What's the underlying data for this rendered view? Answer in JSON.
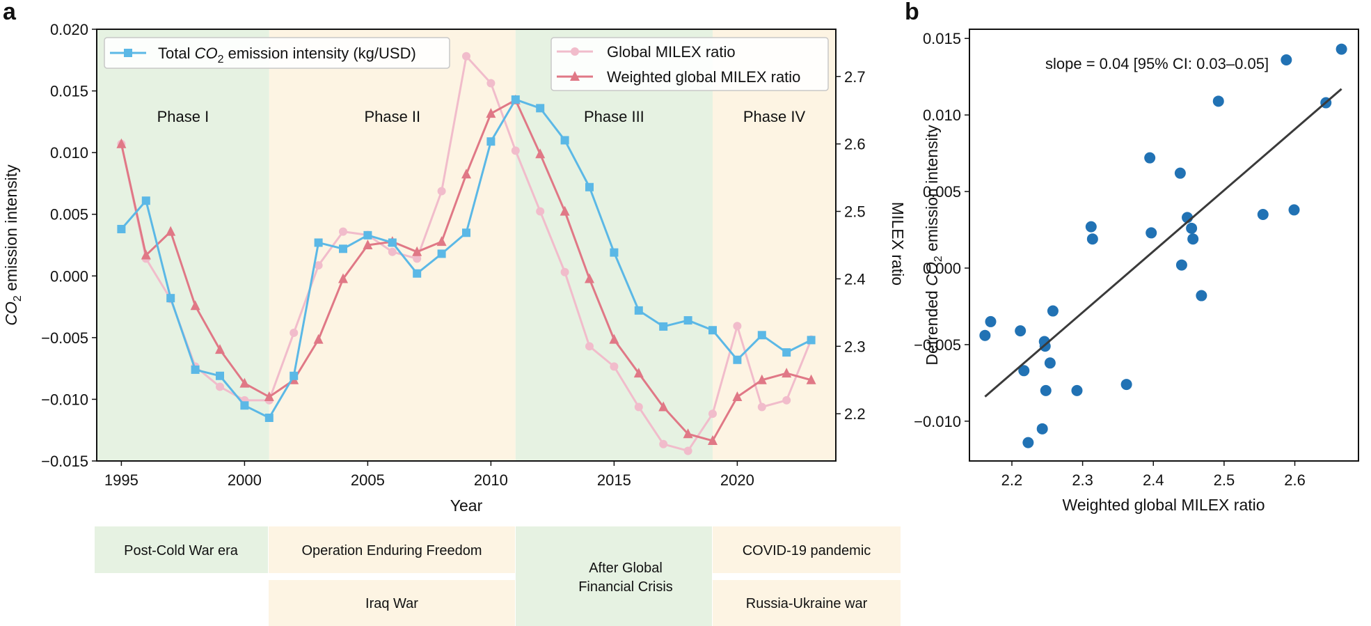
{
  "panel_a": {
    "label": "a",
    "phases": [
      {
        "label": "Phase I",
        "start": 1994.0,
        "end": 2001.0,
        "color": "#e6f2e2"
      },
      {
        "label": "Phase II",
        "start": 2001.0,
        "end": 2011.0,
        "color": "#fdf4e3"
      },
      {
        "label": "Phase III",
        "start": 2011.0,
        "end": 2019.0,
        "color": "#e6f2e2"
      },
      {
        "label": "Phase IV",
        "start": 2019.0,
        "end": 2024.0,
        "color": "#fdf4e3"
      }
    ],
    "legend_left": {
      "prefix": "Total ",
      "co": "CO",
      "sub": "2",
      "suffix": " emission intensity (kg/USD)"
    },
    "legend_right": [
      "Global MILEX ratio",
      "Weighted global MILEX ratio"
    ],
    "events": [
      {
        "label": "Post-Cold War era"
      },
      {
        "label": "Operation Enduring Freedom"
      },
      {
        "label": "Iraq War"
      },
      {
        "label": "After Global"
      },
      {
        "label": "Financial Crisis"
      },
      {
        "label": "COVID-19 pandemic"
      },
      {
        "label": "Russia-Ukraine war"
      }
    ]
  },
  "panel_b": {
    "label": "b",
    "annotation": "slope = 0.04 [95% CI: 0.03–0.05]"
  },
  "chart_data": [
    {
      "type": "line",
      "title": "",
      "xlabel": "Year",
      "ylabel_left": {
        "prefix": "",
        "co": "CO",
        "sub": "2",
        "suffix": " emission intensity"
      },
      "ylabel_right": "MILEX ratio",
      "xlim": [
        1994.0,
        2024.0
      ],
      "ylim_left": [
        -0.015,
        0.02
      ],
      "ylim_right": [
        2.13,
        2.77
      ],
      "x_ticks": [
        1995,
        2000,
        2005,
        2010,
        2015,
        2020
      ],
      "y_ticks_left": [
        "0.020",
        "0.015",
        "0.010",
        "0.005",
        "0.000",
        "−0.005",
        "−0.010",
        "−0.015"
      ],
      "y_ticks_left_values": [
        0.02,
        0.015,
        0.01,
        0.005,
        0.0,
        -0.005,
        -0.01,
        -0.015
      ],
      "y_ticks_right": [
        "2.7",
        "2.6",
        "2.5",
        "2.4",
        "2.3",
        "2.2"
      ],
      "y_ticks_right_values": [
        2.7,
        2.6,
        2.5,
        2.4,
        2.3,
        2.2
      ],
      "x": [
        1995,
        1996,
        1997,
        1998,
        1999,
        2000,
        2001,
        2002,
        2003,
        2004,
        2005,
        2006,
        2007,
        2008,
        2009,
        2010,
        2011,
        2012,
        2013,
        2014,
        2015,
        2016,
        2017,
        2018,
        2019,
        2020,
        2021,
        2022,
        2023
      ],
      "series": [
        {
          "name": "Total CO2 emission intensity (kg/USD)",
          "axis": "left",
          "marker": "square",
          "color": "#5bb8e6",
          "values": [
            0.0038,
            0.0061,
            -0.0018,
            -0.0076,
            -0.0081,
            -0.0105,
            -0.0115,
            -0.0081,
            0.0027,
            0.0022,
            0.0033,
            0.0027,
            0.0002,
            0.0018,
            0.0035,
            0.0109,
            0.0143,
            0.0136,
            0.011,
            0.0072,
            0.0019,
            -0.0028,
            -0.0041,
            -0.0036,
            -0.0044,
            -0.0068,
            -0.0048,
            -0.0062,
            -0.0052
          ]
        },
        {
          "name": "Global MILEX ratio",
          "axis": "right",
          "marker": "circle",
          "color": "#f1bccb",
          "values": [
            2.6,
            2.43,
            2.37,
            2.27,
            2.24,
            2.22,
            2.22,
            2.32,
            2.42,
            2.47,
            2.465,
            2.44,
            2.43,
            2.53,
            2.73,
            2.69,
            2.59,
            2.5,
            2.41,
            2.3,
            2.27,
            2.21,
            2.155,
            2.145,
            2.2,
            2.33,
            2.21,
            2.22,
            2.31
          ]
        },
        {
          "name": "Weighted global MILEX ratio",
          "axis": "right",
          "marker": "triangle",
          "color": "#e07886",
          "values": [
            2.6,
            2.435,
            2.47,
            2.36,
            2.295,
            2.245,
            2.225,
            2.25,
            2.31,
            2.4,
            2.45,
            2.455,
            2.44,
            2.455,
            2.555,
            2.645,
            2.665,
            2.585,
            2.5,
            2.4,
            2.31,
            2.26,
            2.21,
            2.17,
            2.16,
            2.225,
            2.25,
            2.26,
            2.25
          ]
        }
      ]
    },
    {
      "type": "scatter",
      "title": "",
      "xlabel": "Weighted global MILEX ratio",
      "ylabel": {
        "prefix": "Detrended ",
        "co": "CO",
        "sub": "2",
        "suffix": " emission intensity"
      },
      "xlim": [
        2.14,
        2.69
      ],
      "ylim": [
        -0.0126,
        0.0156
      ],
      "x_ticks": [
        "2.2",
        "2.3",
        "2.4",
        "2.5",
        "2.6"
      ],
      "x_ticks_values": [
        2.2,
        2.3,
        2.4,
        2.5,
        2.6
      ],
      "y_ticks": [
        "0.015",
        "0.010",
        "0.005",
        "0.000",
        "−0.005",
        "−0.010"
      ],
      "y_ticks_values": [
        0.015,
        0.01,
        0.005,
        0.0,
        -0.005,
        -0.01
      ],
      "color": "#2172b4",
      "points": [
        {
          "x": 2.162,
          "y": -0.0044
        },
        {
          "x": 2.17,
          "y": -0.0035
        },
        {
          "x": 2.212,
          "y": -0.0041
        },
        {
          "x": 2.217,
          "y": -0.0067
        },
        {
          "x": 2.223,
          "y": -0.0114
        },
        {
          "x": 2.243,
          "y": -0.0105
        },
        {
          "x": 2.246,
          "y": -0.0048
        },
        {
          "x": 2.247,
          "y": -0.0051
        },
        {
          "x": 2.248,
          "y": -0.008
        },
        {
          "x": 2.254,
          "y": -0.0062
        },
        {
          "x": 2.258,
          "y": -0.0028
        },
        {
          "x": 2.292,
          "y": -0.008
        },
        {
          "x": 2.312,
          "y": 0.0027
        },
        {
          "x": 2.314,
          "y": 0.0019
        },
        {
          "x": 2.362,
          "y": -0.0076
        },
        {
          "x": 2.395,
          "y": 0.0072
        },
        {
          "x": 2.397,
          "y": 0.0023
        },
        {
          "x": 2.438,
          "y": 0.0062
        },
        {
          "x": 2.44,
          "y": 0.0002
        },
        {
          "x": 2.448,
          "y": 0.0033
        },
        {
          "x": 2.454,
          "y": 0.0026
        },
        {
          "x": 2.456,
          "y": 0.0019
        },
        {
          "x": 2.468,
          "y": -0.0018
        },
        {
          "x": 2.492,
          "y": 0.0109
        },
        {
          "x": 2.555,
          "y": 0.0035
        },
        {
          "x": 2.588,
          "y": 0.0136
        },
        {
          "x": 2.599,
          "y": 0.0038
        },
        {
          "x": 2.644,
          "y": 0.0108
        },
        {
          "x": 2.666,
          "y": 0.0143
        }
      ],
      "fit_line": {
        "slope": 0.04,
        "x": [
          2.162,
          2.666
        ],
        "y": [
          -0.0084,
          0.0117
        ]
      }
    }
  ]
}
